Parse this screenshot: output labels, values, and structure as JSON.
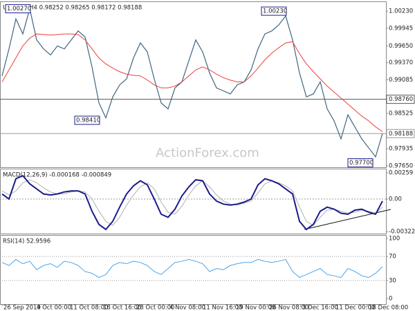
{
  "chart_data": [
    {
      "type": "line",
      "title": "USDCHF,H4  0.98252 0.98265 0.98172 0.98188",
      "watermark": "ActionForex.com",
      "xlim": [
        -0.3,
        55.5
      ],
      "ylim": [
        0.97615,
        1.00381
      ],
      "yticks": [
        {
          "value": 1.0023,
          "label": "1.00230"
        },
        {
          "value": 0.99945,
          "label": "0.99945"
        },
        {
          "value": 0.9965,
          "label": "0.99650"
        },
        {
          "value": 0.9937,
          "label": "0.99370"
        },
        {
          "value": 0.99085,
          "label": "0.99085"
        },
        {
          "value": 0.98525,
          "label": "0.98525"
        },
        {
          "value": 0.97935,
          "label": "0.97935"
        },
        {
          "value": 0.9765,
          "label": "0.97650"
        }
      ],
      "levels": [
        {
          "value": 0.9876,
          "label": "0.98760",
          "color": "#555555"
        },
        {
          "value": 0.98188,
          "label": "0.98188",
          "color": "#999999"
        }
      ],
      "annotations": [
        {
          "text": "1.00270",
          "x": 0.5,
          "y": 1.0027
        },
        {
          "text": "0.98410",
          "x": 10.5,
          "y": 0.9841
        },
        {
          "text": "1.00230",
          "x": 37.5,
          "y": 1.0023
        },
        {
          "text": "0.97700",
          "x": 50,
          "y": 0.977
        }
      ],
      "series": [
        {
          "color": "#3d6680",
          "width": 1.2,
          "values": [
            0.9915,
            0.996,
            1.001,
            0.9985,
            1.0027,
            0.9975,
            0.996,
            0.995,
            0.9965,
            0.996,
            0.9975,
            0.999,
            0.998,
            0.993,
            0.987,
            0.9845,
            0.988,
            0.99,
            0.991,
            0.9945,
            0.997,
            0.9955,
            0.991,
            0.987,
            0.986,
            0.9895,
            0.9905,
            0.994,
            0.9975,
            0.9955,
            0.992,
            0.9895,
            0.989,
            0.9885,
            0.99,
            0.9905,
            0.9925,
            0.996,
            0.9985,
            0.999,
            1.0,
            1.0015,
            0.9975,
            0.992,
            0.988,
            0.9885,
            0.9905,
            0.986,
            0.984,
            0.981,
            0.985,
            0.983,
            0.981,
            0.9795,
            0.978,
            0.9819
          ]
        },
        {
          "color": "#e8413c",
          "width": 1,
          "values": [
            0.9905,
            0.9925,
            0.9945,
            0.9965,
            0.9978,
            0.9985,
            0.9984,
            0.9983,
            0.9984,
            0.9985,
            0.9985,
            0.9984,
            0.9975,
            0.996,
            0.9945,
            0.9935,
            0.9928,
            0.9922,
            0.9918,
            0.9916,
            0.9915,
            0.9908,
            0.99,
            0.9895,
            0.9895,
            0.9898,
            0.9905,
            0.9915,
            0.9925,
            0.993,
            0.9925,
            0.9918,
            0.9912,
            0.9908,
            0.9905,
            0.9905,
            0.9915,
            0.9928,
            0.9942,
            0.9953,
            0.9962,
            0.997,
            0.9972,
            0.9952,
            0.9935,
            0.9922,
            0.991,
            0.9898,
            0.9888,
            0.9878,
            0.9868,
            0.9858,
            0.9848,
            0.984,
            0.983,
            0.9822
          ]
        }
      ]
    },
    {
      "type": "line",
      "title": "MACD(12,26,9) -0.000168 -0.000849",
      "xlim": [
        -0.3,
        55.5
      ],
      "ylim": [
        -0.00341,
        0.00293
      ],
      "yticks": [
        {
          "value": 0.00259,
          "label": "0.00259"
        },
        {
          "value": 0,
          "label": "0.00"
        },
        {
          "value": -0.003221,
          "label": "-0.003221"
        }
      ],
      "series": [
        {
          "color": "#b0b0b0",
          "width": 1,
          "values": [
            0.0008,
            0.0004,
            0.0008,
            0.0016,
            0.0019,
            0.0016,
            0.0011,
            0.0007,
            0.0005,
            0.0005,
            0.0007,
            0.0008,
            0.0007,
            0.0,
            -0.0012,
            -0.0022,
            -0.0026,
            -0.0018,
            -0.0006,
            0.0004,
            0.0012,
            0.0016,
            0.001,
            -0.0003,
            -0.0013,
            -0.0015,
            -0.0007,
            0.0004,
            0.0013,
            0.0018,
            0.0012,
            0.0004,
            -0.0002,
            -0.0005,
            -0.0006,
            -0.0004,
            -0.0002,
            0.0006,
            0.0015,
            0.0018,
            0.0016,
            0.0013,
            0.0008,
            -0.0008,
            -0.0022,
            -0.0026,
            -0.0018,
            -0.0011,
            -0.001,
            -0.0012,
            -0.0014,
            -0.0013,
            -0.0011,
            -0.0012,
            -0.0014,
            -0.0008
          ]
        },
        {
          "color": "#1a1a8c",
          "width": 2,
          "values": [
            0.0005,
            0.0,
            0.002,
            0.0023,
            0.0015,
            0.001,
            0.0005,
            0.0004,
            0.0005,
            0.0007,
            0.0008,
            0.0008,
            0.0005,
            -0.0012,
            -0.0025,
            -0.003,
            -0.0022,
            -0.0008,
            0.0005,
            0.0013,
            0.0018,
            0.0014,
            0.0,
            -0.0015,
            -0.0018,
            -0.001,
            0.0003,
            0.0012,
            0.0019,
            0.0018,
            0.0005,
            -0.0002,
            -0.0005,
            -0.0006,
            -0.0005,
            -0.0003,
            0.0,
            0.0014,
            0.002,
            0.0018,
            0.0015,
            0.001,
            0.0005,
            -0.0022,
            -0.003,
            -0.0025,
            -0.0012,
            -0.0008,
            -0.001,
            -0.0014,
            -0.0015,
            -0.0011,
            -0.001,
            -0.0013,
            -0.0015,
            -0.0002
          ]
        }
      ]
    },
    {
      "type": "line",
      "title": "RSI(14) 52.9596",
      "xlim": [
        -0.3,
        55.5
      ],
      "ylim": [
        -9.2,
        104.6
      ],
      "yticks": [
        100,
        70,
        30,
        0
      ],
      "dotted_levels": [
        70,
        30
      ],
      "xticks": [
        {
          "value": 0,
          "label": "26 Sep 2019"
        },
        {
          "value": 4.8,
          "label": "4 Oct 00:00"
        },
        {
          "value": 9.6,
          "label": "11 Oct 08:00"
        },
        {
          "value": 14.4,
          "label": "18 Oct 16:00"
        },
        {
          "value": 19.2,
          "label": "28 Oct 00:00"
        },
        {
          "value": 24,
          "label": "4 Nov 08:00"
        },
        {
          "value": 28.8,
          "label": "11 Nov 16:00"
        },
        {
          "value": 33.6,
          "label": "19 Nov 00:00"
        },
        {
          "value": 38.4,
          "label": "26 Nov 08:00"
        },
        {
          "value": 43.2,
          "label": "3 Dec 16:00"
        },
        {
          "value": 48,
          "label": "11 Dec 00:00"
        },
        {
          "value": 52.8,
          "label": "18 Dec 08:00"
        }
      ],
      "series": [
        {
          "color": "#4aa3e8",
          "width": 1,
          "values": [
            60,
            55,
            65,
            58,
            62,
            48,
            55,
            58,
            52,
            62,
            60,
            55,
            45,
            42,
            35,
            40,
            55,
            60,
            58,
            62,
            60,
            55,
            45,
            40,
            50,
            60,
            62,
            65,
            62,
            58,
            45,
            50,
            48,
            55,
            58,
            60,
            60,
            65,
            62,
            60,
            62,
            65,
            45,
            35,
            40,
            45,
            50,
            40,
            38,
            35,
            50,
            45,
            38,
            35,
            42,
            53
          ]
        }
      ]
    }
  ]
}
